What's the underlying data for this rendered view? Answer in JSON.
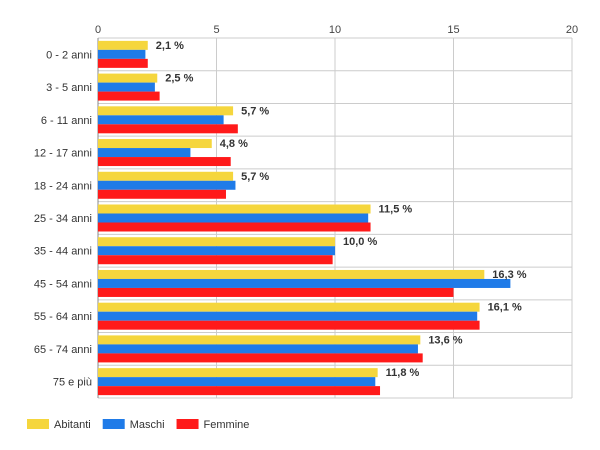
{
  "chart_data": {
    "type": "bar",
    "orientation": "horizontal",
    "categories": [
      "0 - 2 anni",
      "3 - 5 anni",
      "6 - 11 anni",
      "12 - 17 anni",
      "18 - 24 anni",
      "25 - 34 anni",
      "35 - 44 anni",
      "45 - 54 anni",
      "55 - 64 anni",
      "65 - 74 anni",
      "75 e più"
    ],
    "series": [
      {
        "name": "Abitanti",
        "color": "#F5D63D",
        "values": [
          2.1,
          2.5,
          5.7,
          4.8,
          5.7,
          11.5,
          10.0,
          16.3,
          16.1,
          13.6,
          11.8
        ]
      },
      {
        "name": "Maschi",
        "color": "#1F7BE8",
        "values": [
          2.0,
          2.4,
          5.3,
          3.9,
          5.8,
          11.4,
          10.0,
          17.4,
          16.0,
          13.5,
          11.7
        ]
      },
      {
        "name": "Femmine",
        "color": "#FF1A1A",
        "values": [
          2.1,
          2.6,
          5.9,
          5.6,
          5.4,
          11.5,
          9.9,
          15.0,
          16.1,
          13.7,
          11.9
        ]
      }
    ],
    "data_labels": [
      "2,1 %",
      "2,5 %",
      "5,7 %",
      "4,8 %",
      "5,7 %",
      "11,5 %",
      "10,0 %",
      "16,3 %",
      "16,1 %",
      "13,6 %",
      "11,8 %"
    ],
    "xlim": [
      0,
      20
    ],
    "x_ticks": [
      0,
      5,
      10,
      15,
      20
    ],
    "x_tick_labels": [
      "0",
      "5",
      "10",
      "15",
      "20"
    ],
    "grid": true,
    "legend_position": "bottom-left",
    "title": "",
    "xlabel": "",
    "ylabel": ""
  }
}
